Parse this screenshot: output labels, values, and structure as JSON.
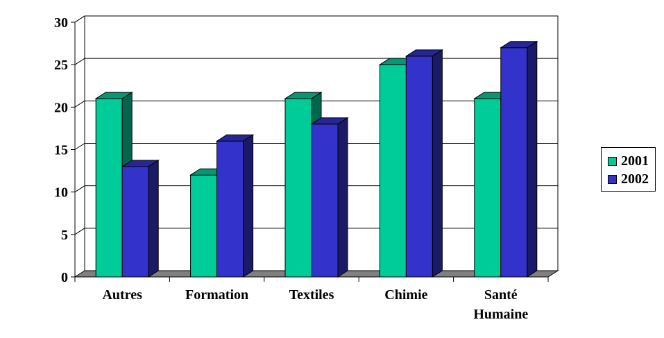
{
  "chart_data": {
    "type": "bar",
    "categories": [
      "Autres",
      "Formation",
      "Textiles",
      "Chimie",
      "Santé Humaine"
    ],
    "series": [
      {
        "name": "2001",
        "values": [
          21,
          12,
          21,
          25,
          21
        ],
        "color": "#00cc99"
      },
      {
        "name": "2002",
        "values": [
          13,
          16,
          18,
          26,
          27
        ],
        "color": "#3333cc"
      }
    ],
    "y_ticks": [
      "0",
      "5",
      "10",
      "15",
      "20",
      "25",
      "30"
    ],
    "ylim": [
      0,
      30
    ],
    "grid": true,
    "legend_position": "right",
    "floor_color": "#808080"
  }
}
